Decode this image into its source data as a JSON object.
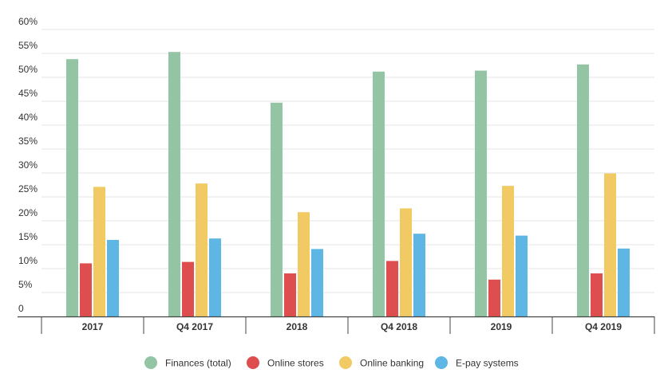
{
  "chart_data": {
    "type": "bar",
    "title": "",
    "xlabel": "",
    "ylabel": "",
    "ylim": [
      0,
      60
    ],
    "y_ticks": [
      "0",
      "5%",
      "10%",
      "15%",
      "20%",
      "25%",
      "30%",
      "35%",
      "40%",
      "45%",
      "50%",
      "55%",
      "60%"
    ],
    "y_tick_values": [
      0,
      5,
      10,
      15,
      20,
      25,
      30,
      35,
      40,
      45,
      50,
      55,
      60
    ],
    "grid": true,
    "legend_position": "bottom",
    "categories": [
      "2017",
      "Q4 2017",
      "2018",
      "Q4 2018",
      "2019",
      "Q4 2019"
    ],
    "series": [
      {
        "name": "Finances (total)",
        "color": "#93c4a4",
        "values": [
          53.8,
          55.3,
          44.7,
          51.2,
          51.4,
          52.7
        ]
      },
      {
        "name": "Online stores",
        "color": "#df4e4e",
        "values": [
          11.1,
          11.4,
          9.0,
          11.6,
          7.7,
          9.0
        ]
      },
      {
        "name": "Online banking",
        "color": "#f2ca64",
        "values": [
          27.1,
          27.8,
          21.8,
          22.6,
          27.3,
          29.9
        ]
      },
      {
        "name": "E-pay systems",
        "color": "#5db6e4",
        "values": [
          16.0,
          16.3,
          14.1,
          17.3,
          16.9,
          14.2
        ]
      }
    ]
  }
}
